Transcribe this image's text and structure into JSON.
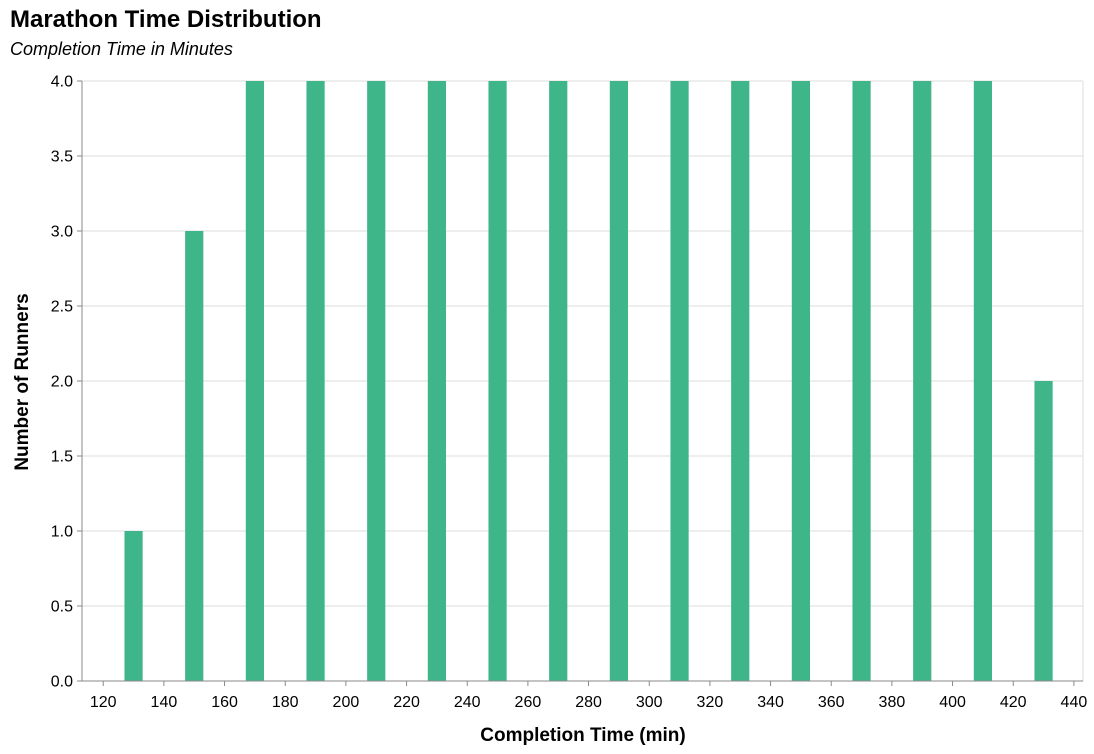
{
  "chart_data": {
    "type": "bar",
    "title": "Marathon Time Distribution",
    "subtitle": "Completion Time in Minutes",
    "xlabel": "Completion Time (min)",
    "ylabel": "Number of Runners",
    "x": [
      130,
      150,
      170,
      190,
      210,
      230,
      250,
      270,
      290,
      310,
      330,
      350,
      370,
      390,
      410,
      430
    ],
    "values": [
      1,
      3,
      4,
      4,
      4,
      4,
      4,
      4,
      4,
      4,
      4,
      4,
      4,
      4,
      4,
      2
    ],
    "bar_width_data": 6,
    "xlim": [
      113,
      443
    ],
    "ylim": [
      0,
      4
    ],
    "x_ticks": [
      120,
      140,
      160,
      180,
      200,
      220,
      240,
      260,
      280,
      300,
      320,
      340,
      360,
      380,
      400,
      420,
      440
    ],
    "y_ticks": [
      0,
      0.5,
      1,
      1.5,
      2,
      2.5,
      3,
      3.5,
      4
    ],
    "y_tick_labels": [
      "0.0",
      "0.5",
      "1.0",
      "1.5",
      "2.0",
      "2.5",
      "3.0",
      "3.5",
      "4.0"
    ],
    "grid": true,
    "colors": {
      "bar": "#3fb68a",
      "grid": "#dddddd",
      "axis": "#888888"
    }
  }
}
